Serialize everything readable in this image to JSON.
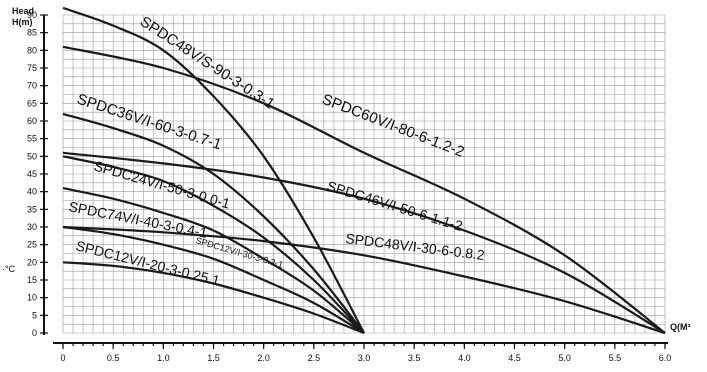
{
  "chart_data": {
    "type": "line",
    "title": "",
    "ylabel_lines": [
      "Head",
      "H(m)"
    ],
    "ylabel_side": "·°C",
    "xlabel": "Q(M³",
    "xlim": [
      0,
      6.0
    ],
    "ylim": [
      0,
      90
    ],
    "x_ticks": [
      "0",
      "0.5",
      "1.0",
      "1.5",
      "2.0",
      "2.5",
      "3.0",
      "3.5",
      "4.0",
      "4.5",
      "5.0",
      "5.5",
      "6.0"
    ],
    "y_ticks": [
      "0",
      "5",
      "10",
      "15",
      "20",
      "25",
      "30",
      "35",
      "40",
      "45",
      "50",
      "55",
      "60",
      "65",
      "70",
      "75",
      "80",
      "85",
      "90"
    ],
    "grid": true,
    "series": [
      {
        "name": "SPDC60V/I-80-6-1.2-2",
        "x": [
          0,
          1,
          2,
          3,
          4,
          5,
          6
        ],
        "y": [
          81,
          75,
          65,
          51,
          38,
          22,
          0
        ]
      },
      {
        "name": "SPDC48V/S-90-3-0.3-1",
        "x": [
          0,
          0.5,
          1.0,
          1.5,
          2.0,
          2.5,
          3.0
        ],
        "y": [
          92,
          87,
          80,
          67,
          50,
          27,
          0
        ]
      },
      {
        "name": "SPDC36V/I-60-3-0.7-1",
        "x": [
          0,
          0.5,
          1.0,
          1.5,
          2.0,
          2.5,
          3.0
        ],
        "y": [
          62,
          58,
          53,
          45,
          33,
          18,
          0
        ]
      },
      {
        "name": "SPDC46V/I-50-6-1.1-2",
        "x": [
          0,
          1,
          2,
          3,
          4,
          5,
          6
        ],
        "y": [
          51,
          48,
          44,
          38,
          29,
          17,
          0
        ]
      },
      {
        "name": "SPDC24V/I-50-3-0.0-1",
        "x": [
          0,
          0.5,
          1.0,
          1.5,
          2.0,
          2.5,
          3.0
        ],
        "y": [
          50,
          47,
          43,
          36,
          27,
          15,
          0
        ]
      },
      {
        "name": "SPDC74V/I-40-3-0.4-1",
        "x": [
          0,
          0.5,
          1.0,
          1.5,
          2.0,
          2.5,
          3.0
        ],
        "y": [
          41,
          38,
          34,
          29,
          21,
          12,
          0
        ]
      },
      {
        "name": "SPDC48V/I-30-6-0.8.2",
        "x": [
          0,
          1,
          2,
          3,
          4,
          5,
          6
        ],
        "y": [
          30,
          28.5,
          26,
          22,
          16,
          9,
          0
        ]
      },
      {
        "name": "SPDC12V/I-30-3-0.3-1",
        "x": [
          0,
          0.5,
          1.0,
          1.5,
          2.0,
          2.5,
          3.0
        ],
        "y": [
          30,
          28,
          25,
          21,
          15,
          8.5,
          0
        ]
      },
      {
        "name": "SPDC12V/I-20-3-0.25.1",
        "x": [
          0,
          0.5,
          1.0,
          1.5,
          2.0,
          2.5,
          3.0
        ],
        "y": [
          20,
          19,
          17,
          14,
          10,
          5.5,
          0
        ]
      }
    ],
    "labels": [
      {
        "text": "SPDC48V/S-90-3-0.3-1",
        "series": 1
      },
      {
        "text": "SPDC60V/I-80-6-1.2-2",
        "series": 0
      },
      {
        "text": "SPDC36V/I-60-3-0.7-1",
        "series": 2
      },
      {
        "text": "SPDC46V/I-50-6-1.1-2",
        "series": 3
      },
      {
        "text": "SPDC24V/I-50-3-0.0-1",
        "series": 4
      },
      {
        "text": "SPDC74V/I-40-3-0.4-1",
        "series": 5
      },
      {
        "text": "SPDC48V/I-30-6-0.8.2",
        "series": 6
      },
      {
        "text": "SPDC12V/I-30-3-0.3-1",
        "series": 7
      },
      {
        "text": "SPDC12V/I-20-3-0.25.1",
        "series": 8
      }
    ]
  }
}
